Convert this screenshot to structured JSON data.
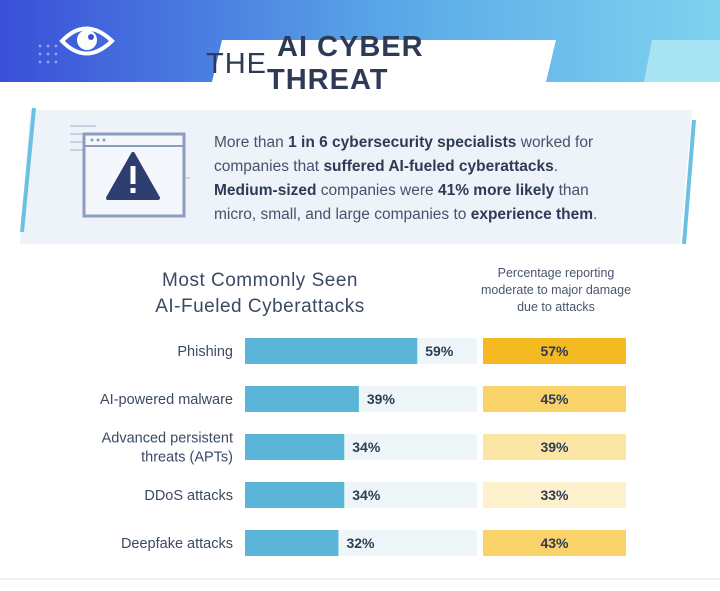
{
  "header": {
    "title_prefix": "THE",
    "title_bold": "AI CYBER THREAT"
  },
  "callout": {
    "line1_a": "More than ",
    "line1_b": "1 in 6 cybersecurity specialists",
    "line1_c": " worked for",
    "line2_a": "companies that ",
    "line2_b": "suffered AI-fueled cyberattacks",
    "line2_c": ".",
    "line3_a": "Medium-sized",
    "line3_b": " companies were ",
    "line3_c": "41% more likely",
    "line3_d": " than",
    "line4_a": "micro, small, and large companies to ",
    "line4_b": "experience them",
    "line4_c": "."
  },
  "chart_data": {
    "type": "bar",
    "title_line1": "Most Commonly Seen",
    "title_line2": "AI-Fueled Cyberattacks",
    "right_title_line1": "Percentage reporting",
    "right_title_line2": "moderate to major damage",
    "right_title_line3": "due to attacks",
    "categories": [
      [
        "Phishing"
      ],
      [
        "AI-powered malware"
      ],
      [
        "Advanced persistent",
        "threats (APTs)"
      ],
      [
        "DDoS attacks"
      ],
      [
        "Deepfake attacks"
      ]
    ],
    "values": [
      59,
      39,
      34,
      34,
      32
    ],
    "value_labels": [
      "59%",
      "39%",
      "34%",
      "34%",
      "32%"
    ],
    "damage_values": [
      57,
      45,
      39,
      33,
      43
    ],
    "damage_labels": [
      "57%",
      "45%",
      "39%",
      "33%",
      "43%"
    ],
    "colors": {
      "bar": "#5ab6d6",
      "bar_track": "#eef6fa",
      "damage_high": "#f5b921",
      "damage_mid": "#f9d36a",
      "damage_low": "#fbe6a6",
      "damage_lowest": "#fdf0cc"
    }
  }
}
